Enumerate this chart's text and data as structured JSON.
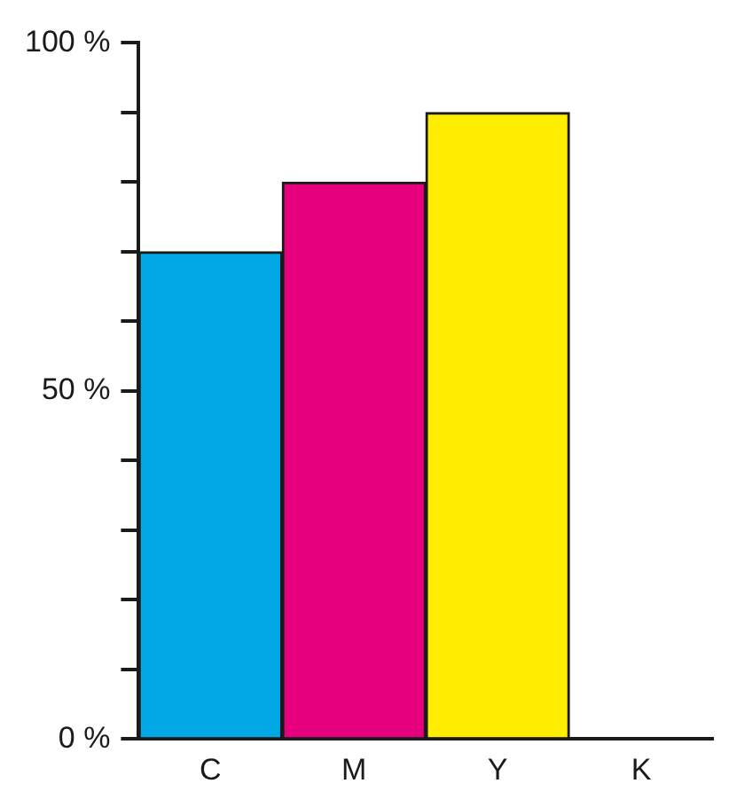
{
  "chart_data": {
    "type": "bar",
    "categories": [
      "C",
      "M",
      "Y",
      "K"
    ],
    "values": [
      70,
      80,
      90,
      0
    ],
    "colors": [
      "#00a8e6",
      "#e6007e",
      "#ffed00",
      "#1a1a1a"
    ],
    "ylim": [
      0,
      100
    ],
    "yticks": [
      {
        "value": 0,
        "label": "0 %"
      },
      {
        "value": 10,
        "label": null
      },
      {
        "value": 20,
        "label": null
      },
      {
        "value": 30,
        "label": null
      },
      {
        "value": 40,
        "label": null
      },
      {
        "value": 50,
        "label": "50 %"
      },
      {
        "value": 60,
        "label": null
      },
      {
        "value": 70,
        "label": null
      },
      {
        "value": 80,
        "label": null
      },
      {
        "value": 90,
        "label": null
      },
      {
        "value": 100,
        "label": "100 %"
      }
    ],
    "grid": false,
    "legend": false
  }
}
